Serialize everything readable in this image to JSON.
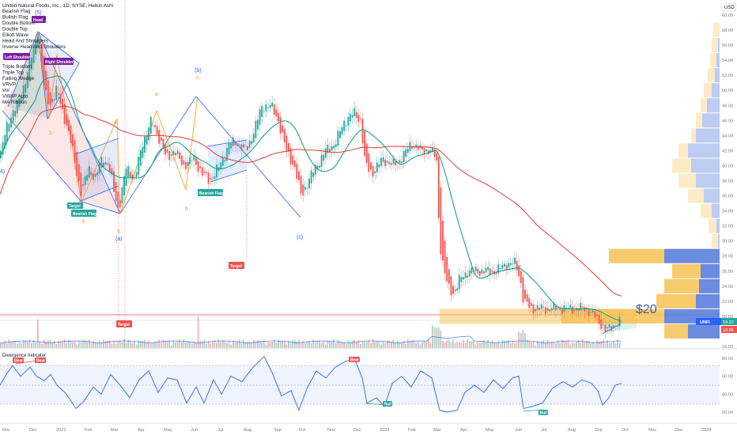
{
  "header": {
    "title": "United Natural Foods, Inc., 1D, NYSE, Heikin Ashi",
    "currency": "USD"
  },
  "indicator_list": [
    "Bearish Flag",
    "Bullish Flag",
    "Double Bottom",
    "Double Top",
    "Elliott Wave",
    "Head And Shoulders",
    "Inverse Head And Shoulders",
    "Left Shoulder",
    "Triple Bottom",
    "Triple Top",
    "Falling Wedge",
    "VRVP",
    "Vol",
    "VWAP Auto",
    "MA Ribbon"
  ],
  "price_axis": [
    "60.00",
    "58.00",
    "56.00",
    "54.00",
    "52.00",
    "50.00",
    "48.00",
    "46.00",
    "44.00",
    "42.00",
    "40.00",
    "38.00",
    "36.00",
    "34.00",
    "32.00",
    "30.00",
    "28.00",
    "26.00",
    "24.00",
    "22.00",
    "20.00",
    "18.00",
    "16.00"
  ],
  "price_badges": {
    "symbol": "UNFI",
    "last": "19.22",
    "prev": "18.85",
    "red_line": "20.00"
  },
  "osc_axis": [
    "80.00",
    "60.00",
    "40.00",
    "20.00"
  ],
  "oscillator_title": "Divergence Indicator",
  "time_axis": [
    "Nov",
    "Dec",
    "2022",
    "Feb",
    "Mar",
    "Apr",
    "May",
    "Jun",
    "Jul",
    "Aug",
    "Sep",
    "Oct",
    "Nov",
    "Dec",
    "2023",
    "Feb",
    "Mar",
    "Apr",
    "May",
    "Jun",
    "Jul",
    "Aug",
    "Sep",
    "Oct",
    "Nov",
    "Dec",
    "2024"
  ],
  "annotations": {
    "price_note": "$20",
    "head": "Head",
    "right_shoulder": "Right Shoulder",
    "left_shoulder": "Left Shoulder",
    "target": "Target",
    "bearish_flag": "Bearish Flag",
    "bear": "Bear",
    "bull": "Bull",
    "wave_5": "(5)",
    "wave_a_paren": "(a)",
    "wave_b_paren": "(b)",
    "wave_c_paren": "(c)",
    "wave_a": "a",
    "wave_b": "b",
    "wave_c": "c",
    "wave_1": "1",
    "wave_2": "2",
    "wave_3": "3",
    "wave_4": "4",
    "wave_5_small": "5",
    "wave_4_paren": "4)"
  },
  "colors": {
    "up": "#26a69a",
    "down": "#ef5350",
    "ma_fast": "#089981",
    "ma_slow": "#e53935",
    "osc_line": "#2962ff",
    "wave_blue": "#2962ff",
    "wave_orange": "#ff9800",
    "label_purple": "#7b1fa2",
    "vrvp_blue": "#5b7fdc",
    "vrvp_orange": "#f7c55c"
  }
}
